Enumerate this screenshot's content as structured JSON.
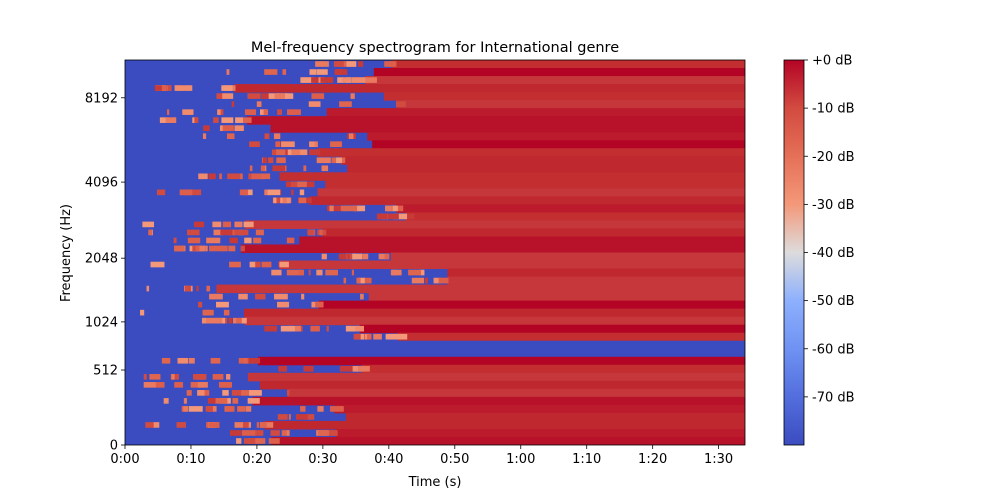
{
  "chart_data": {
    "type": "heatmap",
    "title": "Mel-frequency spectrogram for International genre",
    "xlabel": "Time (s)",
    "ylabel": "Frequency (Hz)",
    "x_ticks": [
      "0:00",
      "0:10",
      "0:20",
      "0:30",
      "0:40",
      "0:50",
      "1:00",
      "1:10",
      "1:20",
      "1:30"
    ],
    "x_tick_seconds": [
      0,
      10,
      20,
      30,
      40,
      50,
      60,
      70,
      80,
      90
    ],
    "xlim_seconds": [
      0,
      94
    ],
    "y_scale": "mel",
    "y_ticks": [
      "0",
      "512",
      "1024",
      "2048",
      "4096",
      "8192"
    ],
    "y_tick_hz": [
      0,
      512,
      1024,
      2048,
      4096,
      8192
    ],
    "ylim_hz": [
      0,
      11025
    ],
    "colormap": "coolwarm",
    "colorbar": {
      "ticks": [
        "+0 dB",
        "-10 dB",
        "-20 dB",
        "-30 dB",
        "-40 dB",
        "-50 dB",
        "-60 dB",
        "-70 dB"
      ],
      "tick_values": [
        0,
        -10,
        -20,
        -30,
        -40,
        -50,
        -60,
        -70
      ],
      "range_db": [
        -80,
        0
      ]
    },
    "value_range_db": [
      -80,
      0
    ],
    "grid": false,
    "legend": "none",
    "colors": {
      "cold": "#3b4cc0",
      "warm": "#b40426"
    }
  }
}
